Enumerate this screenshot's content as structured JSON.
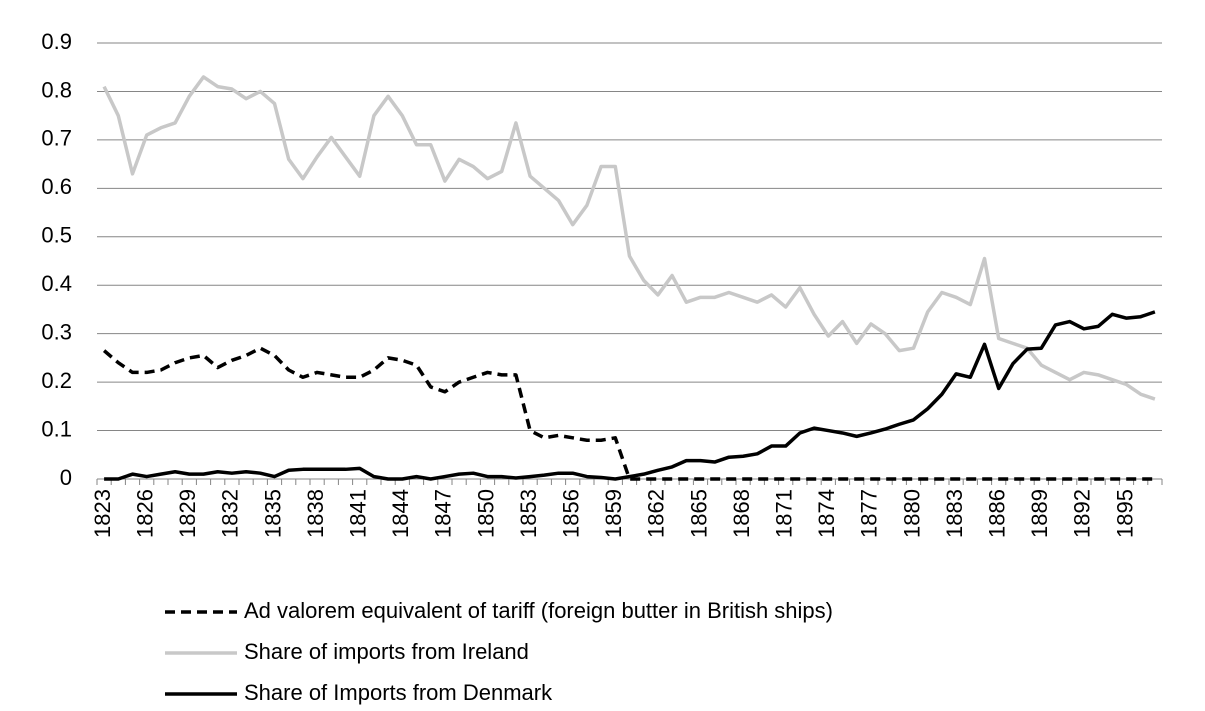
{
  "chart_data": {
    "type": "line",
    "categories": [
      "1823",
      null,
      null,
      "1826",
      null,
      null,
      "1829",
      null,
      null,
      "1832",
      null,
      null,
      "1835",
      null,
      null,
      "1838",
      null,
      null,
      "1841",
      null,
      null,
      "1844",
      null,
      null,
      "1847",
      null,
      null,
      "1850",
      null,
      null,
      "1853",
      null,
      null,
      "1856",
      null,
      null,
      "1859",
      null,
      null,
      "1862",
      null,
      null,
      "1865",
      null,
      null,
      "1868",
      null,
      null,
      "1871",
      null,
      null,
      "1874",
      null,
      null,
      "1877",
      null,
      null,
      "1880",
      null,
      null,
      "1883",
      null,
      null,
      "1886",
      null,
      null,
      "1889",
      null,
      null,
      "1892",
      null,
      null,
      "1895",
      null,
      null
    ],
    "series": [
      {
        "name": "Ad valorem equivalent of tariff (foreign butter in British ships)",
        "color": "#000000",
        "dashed": true,
        "values": [
          0.265,
          0.24,
          0.22,
          0.22,
          0.225,
          0.24,
          0.25,
          0.255,
          0.23,
          0.245,
          0.255,
          0.27,
          0.255,
          0.225,
          0.21,
          0.22,
          0.215,
          0.21,
          0.21,
          0.225,
          0.25,
          0.245,
          0.235,
          0.19,
          0.18,
          0.2,
          0.21,
          0.22,
          0.215,
          0.215,
          0.1,
          0.085,
          0.09,
          0.085,
          0.08,
          0.08,
          0.085,
          0,
          0,
          0,
          0,
          0,
          0,
          0,
          0,
          0,
          0,
          0,
          0,
          0,
          0,
          0,
          0,
          0,
          0,
          0,
          0,
          0,
          0,
          0,
          0,
          0,
          0,
          0,
          0,
          0,
          0,
          0,
          0,
          0,
          0,
          0,
          0,
          0,
          0
        ]
      },
      {
        "name": "Share of imports from Ireland",
        "color": "#c8c8c8",
        "dashed": false,
        "values": [
          0.81,
          0.75,
          0.63,
          0.71,
          0.725,
          0.735,
          0.79,
          0.83,
          0.81,
          0.805,
          0.785,
          0.8,
          0.775,
          0.66,
          0.62,
          0.665,
          0.705,
          0.665,
          0.625,
          0.75,
          0.79,
          0.75,
          0.69,
          0.69,
          0.615,
          0.66,
          0.645,
          0.62,
          0.635,
          0.735,
          0.625,
          0.6,
          0.575,
          0.525,
          0.565,
          0.645,
          0.645,
          0.46,
          0.41,
          0.38,
          0.42,
          0.365,
          0.375,
          0.375,
          0.385,
          0.375,
          0.365,
          0.38,
          0.355,
          0.395,
          0.34,
          0.295,
          0.325,
          0.28,
          0.32,
          0.3,
          0.265,
          0.27,
          0.345,
          0.385,
          0.375,
          0.36,
          0.455,
          0.29,
          0.28,
          0.27,
          0.235,
          0.22,
          0.205,
          0.22,
          0.215,
          0.205,
          0.195,
          0.175,
          0.165
        ]
      },
      {
        "name": "Share of Imports from Denmark",
        "color": "#000000",
        "dashed": false,
        "values": [
          0,
          0,
          0.01,
          0.005,
          0.01,
          0.015,
          0.01,
          0.01,
          0.015,
          0.012,
          0.015,
          0.012,
          0.005,
          0.018,
          0.02,
          0.02,
          0.02,
          0.02,
          0.022,
          0.005,
          0,
          0,
          0.005,
          0,
          0.005,
          0.01,
          0.012,
          0.005,
          0.005,
          0.002,
          0.005,
          0.008,
          0.012,
          0.012,
          0.005,
          0.003,
          0,
          0.005,
          0.01,
          0.018,
          0.025,
          0.038,
          0.038,
          0.035,
          0.045,
          0.047,
          0.052,
          0.068,
          0.068,
          0.095,
          0.105,
          0.1,
          0.095,
          0.088,
          0.095,
          0.103,
          0.113,
          0.122,
          0.145,
          0.175,
          0.217,
          0.21,
          0.278,
          0.187,
          0.238,
          0.268,
          0.27,
          0.318,
          0.325,
          0.31,
          0.315,
          0.34,
          0.332,
          0.335,
          0.345
        ]
      }
    ],
    "ylim": [
      0,
      0.9
    ],
    "yticks": [
      0,
      0.1,
      0.2,
      0.3,
      0.4,
      0.5,
      0.6,
      0.7,
      0.8,
      0.9
    ],
    "grid": true,
    "legend": "bottom"
  }
}
